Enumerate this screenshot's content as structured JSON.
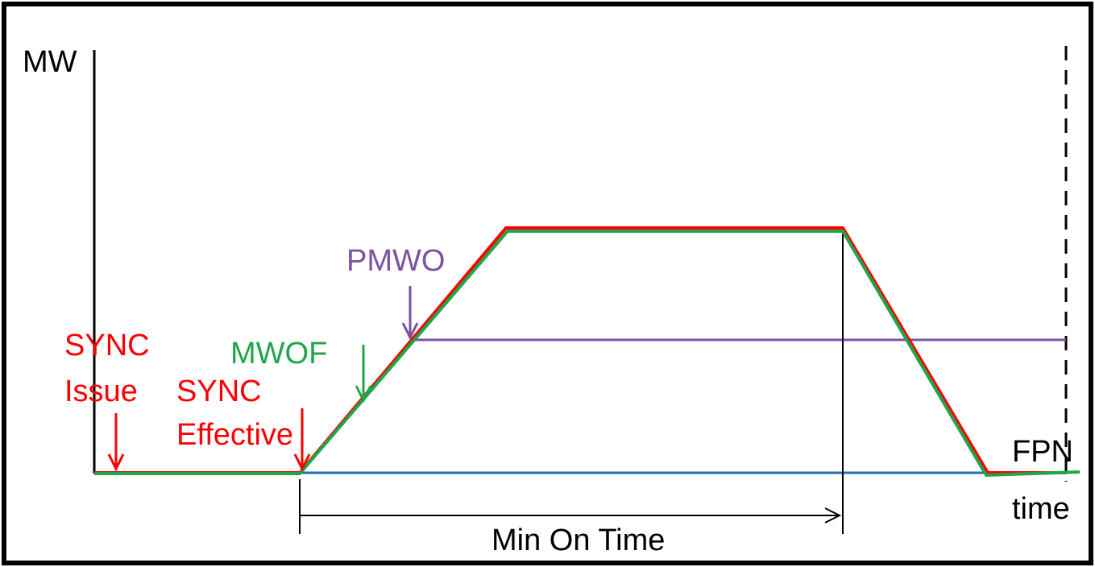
{
  "labels": {
    "mw": "MW",
    "time": "time",
    "sync_issue_line1": "SYNC",
    "sync_issue_line2": "Issue",
    "sync_effective_line1": "SYNC",
    "sync_effective_line2": "Effective",
    "mwof": "MWOF",
    "pmwo": "PMWO",
    "fpn": "FPN",
    "min_on_time": "Min On Time"
  },
  "colors": {
    "frame": "#000000",
    "red": "#ff0000",
    "green": "#1fa64a",
    "purple": "#7a52a3",
    "blue": "#1f6fb4",
    "axis": "#000000"
  }
}
